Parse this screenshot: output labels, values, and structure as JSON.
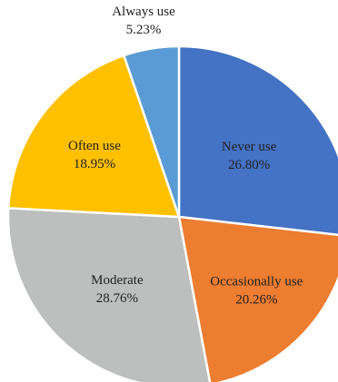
{
  "chart_data": {
    "type": "pie",
    "title": "",
    "start_angle_deg": 0,
    "direction": "clockwise",
    "slices": [
      {
        "label": "Never use",
        "value": 26.8,
        "value_label": "26.80%",
        "color": "#4472C4"
      },
      {
        "label": "Occasionally use",
        "value": 20.26,
        "value_label": "20.26%",
        "color": "#ED7D31"
      },
      {
        "label": "Moderate",
        "value": 28.76,
        "value_label": "28.76%",
        "color": "#BDBFBE"
      },
      {
        "label": "Often use",
        "value": 18.95,
        "value_label": "18.95%",
        "color": "#FFC000"
      },
      {
        "label": "Always use",
        "value": 5.23,
        "value_label": "5.23%",
        "color": "#5B9BD5"
      }
    ]
  }
}
